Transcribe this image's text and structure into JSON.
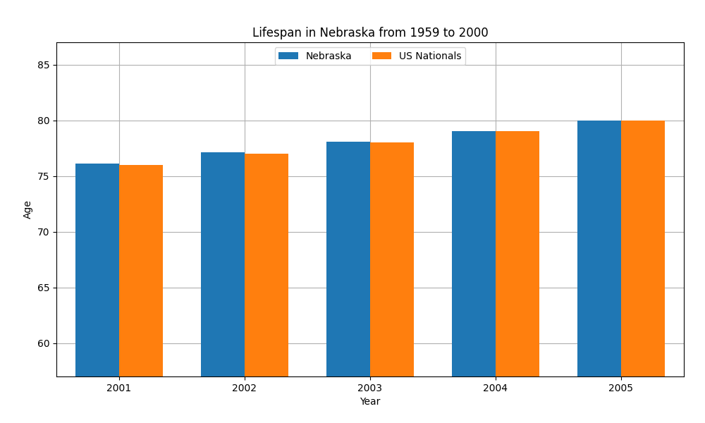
{
  "chart_data": {
    "type": "bar",
    "title": "Lifespan in Nebraska from 1959 to 2000",
    "xlabel": "Year",
    "ylabel": "Age",
    "categories": [
      "2001",
      "2002",
      "2003",
      "2004",
      "2005"
    ],
    "series": [
      {
        "name": "Nebraska",
        "values": [
          76.1,
          77.1,
          78.1,
          79.0,
          80.0
        ]
      },
      {
        "name": "US Nationals",
        "values": [
          76.0,
          77.0,
          78.0,
          79.0,
          80.0
        ]
      }
    ],
    "ylim": [
      57.0,
      87.0
    ],
    "yticks": [
      60,
      65,
      70,
      75,
      80,
      85
    ],
    "grid": true,
    "legend": "upper center"
  }
}
